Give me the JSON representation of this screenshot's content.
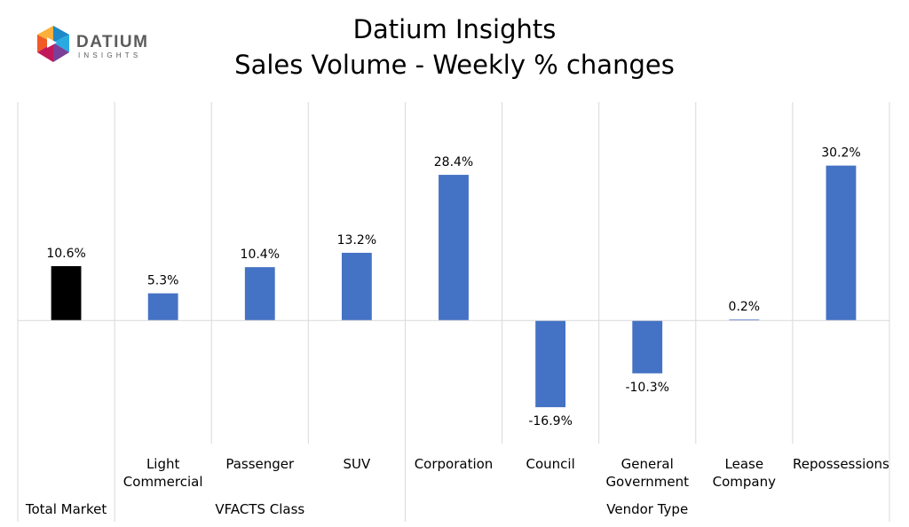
{
  "logo": {
    "brand": "DATIUM",
    "tagline": "INSIGHTS",
    "colors": [
      "#1e88c8",
      "#29abe2",
      "#7b3f98",
      "#c2185b",
      "#f15a24",
      "#fbb03b",
      "#8cc63f",
      "#0c6aa6"
    ]
  },
  "chart_data": {
    "type": "bar",
    "title": "Datium Insights",
    "subtitle": "Sales Volume - Weekly % changes",
    "categories": [
      "Total Market",
      "Light Commercial",
      "Passenger",
      "SUV",
      "Corporation",
      "Council",
      "General Government",
      "Lease Company",
      "Repossessions"
    ],
    "category_lines": [
      [
        "Total Market"
      ],
      [
        "Light",
        "Commercial"
      ],
      [
        "Passenger"
      ],
      [
        "SUV"
      ],
      [
        "Corporation"
      ],
      [
        "Council"
      ],
      [
        "General",
        "Government"
      ],
      [
        "Lease",
        "Company"
      ],
      [
        "Repossessions"
      ]
    ],
    "values": [
      10.6,
      5.3,
      10.4,
      13.2,
      28.4,
      -16.9,
      -10.3,
      0.2,
      30.2
    ],
    "data_labels": [
      "10.6%",
      "5.3%",
      "10.4%",
      "13.2%",
      "28.4%",
      "-16.9%",
      "-10.3%",
      "0.2%",
      "30.2%"
    ],
    "bar_colors": [
      "#000000",
      "#4472c4",
      "#4472c4",
      "#4472c4",
      "#4472c4",
      "#4472c4",
      "#4472c4",
      "#4472c4",
      "#4472c4"
    ],
    "groups": [
      {
        "label": "",
        "start": 0,
        "end": 0
      },
      {
        "label": "VFACTS Class",
        "start": 1,
        "end": 3
      },
      {
        "label": "Vendor Type",
        "start": 4,
        "end": 8
      }
    ],
    "ylim": [
      -24,
      40
    ],
    "xlabel": "",
    "ylabel": "",
    "gridlines": false,
    "legend": "none"
  }
}
